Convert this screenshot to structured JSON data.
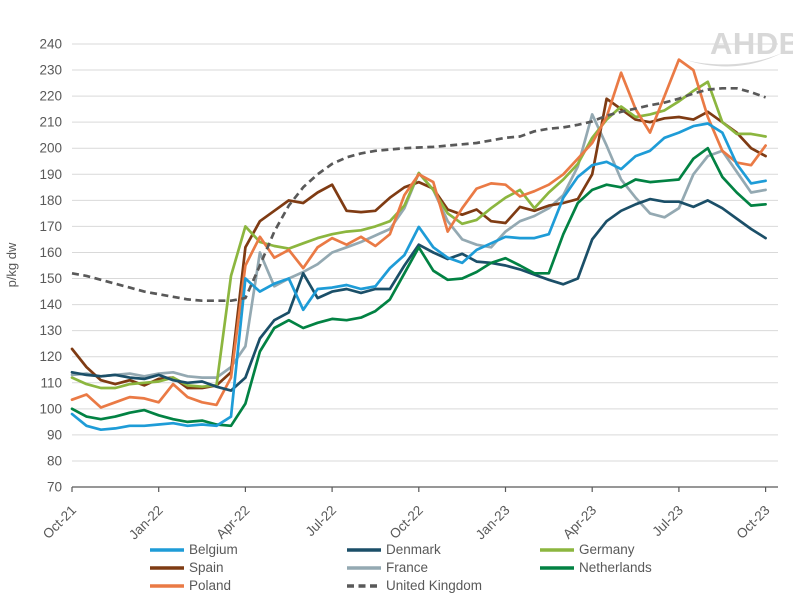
{
  "logo": {
    "text": "AHDB"
  },
  "chart_data": {
    "type": "line",
    "title": "",
    "xlabel": "",
    "ylabel": "p/kg dw",
    "ylim": [
      70,
      240
    ],
    "ytick_step": 10,
    "y_ticks": [
      70,
      80,
      90,
      100,
      110,
      120,
      130,
      140,
      150,
      160,
      170,
      180,
      190,
      200,
      210,
      220,
      230,
      240
    ],
    "x_tick_labels": [
      "Oct-21",
      "Jan-22",
      "Apr-22",
      "Jul-22",
      "Oct-22",
      "Jan-23",
      "Apr-23",
      "Jul-23",
      "Oct-23"
    ],
    "x_tick_indices": [
      0,
      6,
      12,
      18,
      24,
      30,
      36,
      42,
      48
    ],
    "points_per_month": 2,
    "grid": "horizontal",
    "legend_position": "bottom",
    "legend_columns": [
      [
        "Belgium",
        "Spain",
        "Poland"
      ],
      [
        "Denmark",
        "France",
        "United Kingdom"
      ],
      [
        "Germany",
        "Netherlands"
      ]
    ],
    "colors": {
      "grid": "#D9D9D9",
      "axis_text": "#595959",
      "logo": "#D8D8D8"
    },
    "series": [
      {
        "name": "France",
        "color": "#94A9B2",
        "dash": false,
        "values": [
          113,
          113.5,
          112.5,
          113,
          113.5,
          112.5,
          113.5,
          114,
          112.5,
          112,
          112,
          116,
          124,
          160,
          147,
          150,
          152.5,
          155.5,
          160,
          162,
          164,
          166.5,
          169,
          177,
          190.5,
          184,
          172,
          165,
          163,
          162,
          168,
          172,
          174,
          177,
          182,
          193,
          213,
          201,
          188,
          181,
          175,
          173.5,
          177,
          190,
          197,
          199,
          191,
          183,
          184
        ]
      },
      {
        "name": "Spain",
        "color": "#7F3B13",
        "dash": false,
        "values": [
          123,
          116,
          111,
          109.5,
          111,
          109,
          111.5,
          112,
          108,
          108,
          109,
          114,
          162,
          172,
          176,
          180,
          179,
          183,
          186,
          176,
          175.5,
          176,
          181,
          185,
          187,
          184.5,
          176.5,
          174.5,
          176.5,
          172,
          171.3,
          177.5,
          176,
          178,
          179,
          180.5,
          190,
          219,
          215,
          211,
          210,
          211.5,
          212,
          211,
          214,
          210,
          206,
          200,
          197
        ]
      },
      {
        "name": "Germany",
        "color": "#8CB63F",
        "dash": false,
        "values": [
          112,
          109.5,
          108,
          108,
          109.5,
          110,
          110.5,
          112,
          109,
          108.5,
          109,
          151,
          170,
          164,
          162.5,
          161.5,
          163.5,
          165.5,
          167,
          168,
          168.5,
          170,
          172,
          178,
          190.5,
          184,
          175,
          171,
          172.5,
          177,
          181,
          184,
          177,
          183,
          188,
          194,
          204,
          211,
          216,
          212,
          213,
          214.5,
          218,
          222,
          225.5,
          210,
          205.5,
          205.5,
          204.5
        ]
      },
      {
        "name": "Poland",
        "color": "#EA7A45",
        "dash": false,
        "values": [
          103.5,
          105.5,
          100.5,
          102.5,
          104.5,
          104,
          102.5,
          109.5,
          104.5,
          102.5,
          101.5,
          112,
          155,
          166,
          158,
          161,
          154,
          162,
          165.5,
          163,
          166,
          162.5,
          167,
          182,
          190,
          187,
          168,
          177,
          184.5,
          186.5,
          186,
          181.5,
          183.5,
          186,
          190,
          196,
          202,
          212,
          229,
          215,
          206,
          220,
          234,
          230,
          212,
          199,
          194.5,
          193.5,
          201
        ]
      },
      {
        "name": "Denmark",
        "color": "#1B4F68",
        "dash": false,
        "values": [
          114,
          113,
          112.5,
          113,
          112,
          111.5,
          113,
          111,
          110,
          110.5,
          108.5,
          107,
          112,
          127,
          134,
          137,
          152,
          142.5,
          145,
          146,
          144.5,
          146,
          146,
          155,
          163,
          160,
          157.5,
          159.5,
          156.5,
          156,
          155,
          153.5,
          151.5,
          149.5,
          147.8,
          150,
          165,
          172,
          176,
          178.5,
          180.5,
          179.5,
          179.5,
          177.5,
          180,
          177,
          173,
          169,
          165.5
        ]
      },
      {
        "name": "Netherlands",
        "color": "#028243",
        "dash": false,
        "values": [
          100,
          97,
          96,
          97,
          98.5,
          99.5,
          97.5,
          96,
          95,
          95.5,
          94,
          93.5,
          102,
          122,
          131,
          134,
          131,
          133,
          134.5,
          134,
          135,
          137.5,
          142,
          152,
          162,
          153,
          149.5,
          150,
          152.5,
          156,
          157.8,
          155,
          152,
          152,
          167,
          179,
          184,
          186,
          185,
          188,
          187,
          187.5,
          188,
          196,
          200,
          189,
          183,
          178,
          178.5
        ]
      },
      {
        "name": "Belgium",
        "color": "#1E9CD7",
        "dash": false,
        "values": [
          98,
          93.5,
          92,
          92.5,
          93.5,
          93.5,
          94,
          94.5,
          93.5,
          94,
          93.5,
          97,
          150,
          145,
          148,
          150,
          138,
          146,
          146.5,
          147.5,
          146,
          147,
          154,
          159,
          169.8,
          162,
          158,
          156,
          161,
          163.5,
          166,
          165.5,
          165.5,
          167,
          181,
          189,
          193.5,
          194.8,
          192,
          197,
          199,
          204,
          206,
          208.5,
          209.5,
          206,
          194,
          186.5,
          187.5
        ]
      },
      {
        "name": "United Kingdom",
        "color": "#595959",
        "dash": true,
        "values": [
          152,
          151,
          149.5,
          148,
          146.5,
          145,
          144,
          143,
          142,
          141.5,
          141.5,
          141.5,
          142.5,
          155,
          168,
          178,
          185,
          190,
          194,
          196.5,
          198,
          199,
          199.5,
          200,
          200.3,
          200.5,
          201,
          201.5,
          202,
          203,
          204,
          204.5,
          206.5,
          207.5,
          208,
          209,
          210.3,
          212.5,
          214,
          215.2,
          216.5,
          217.5,
          219,
          221,
          222.5,
          223,
          223,
          221.5,
          219.5
        ]
      }
    ]
  }
}
